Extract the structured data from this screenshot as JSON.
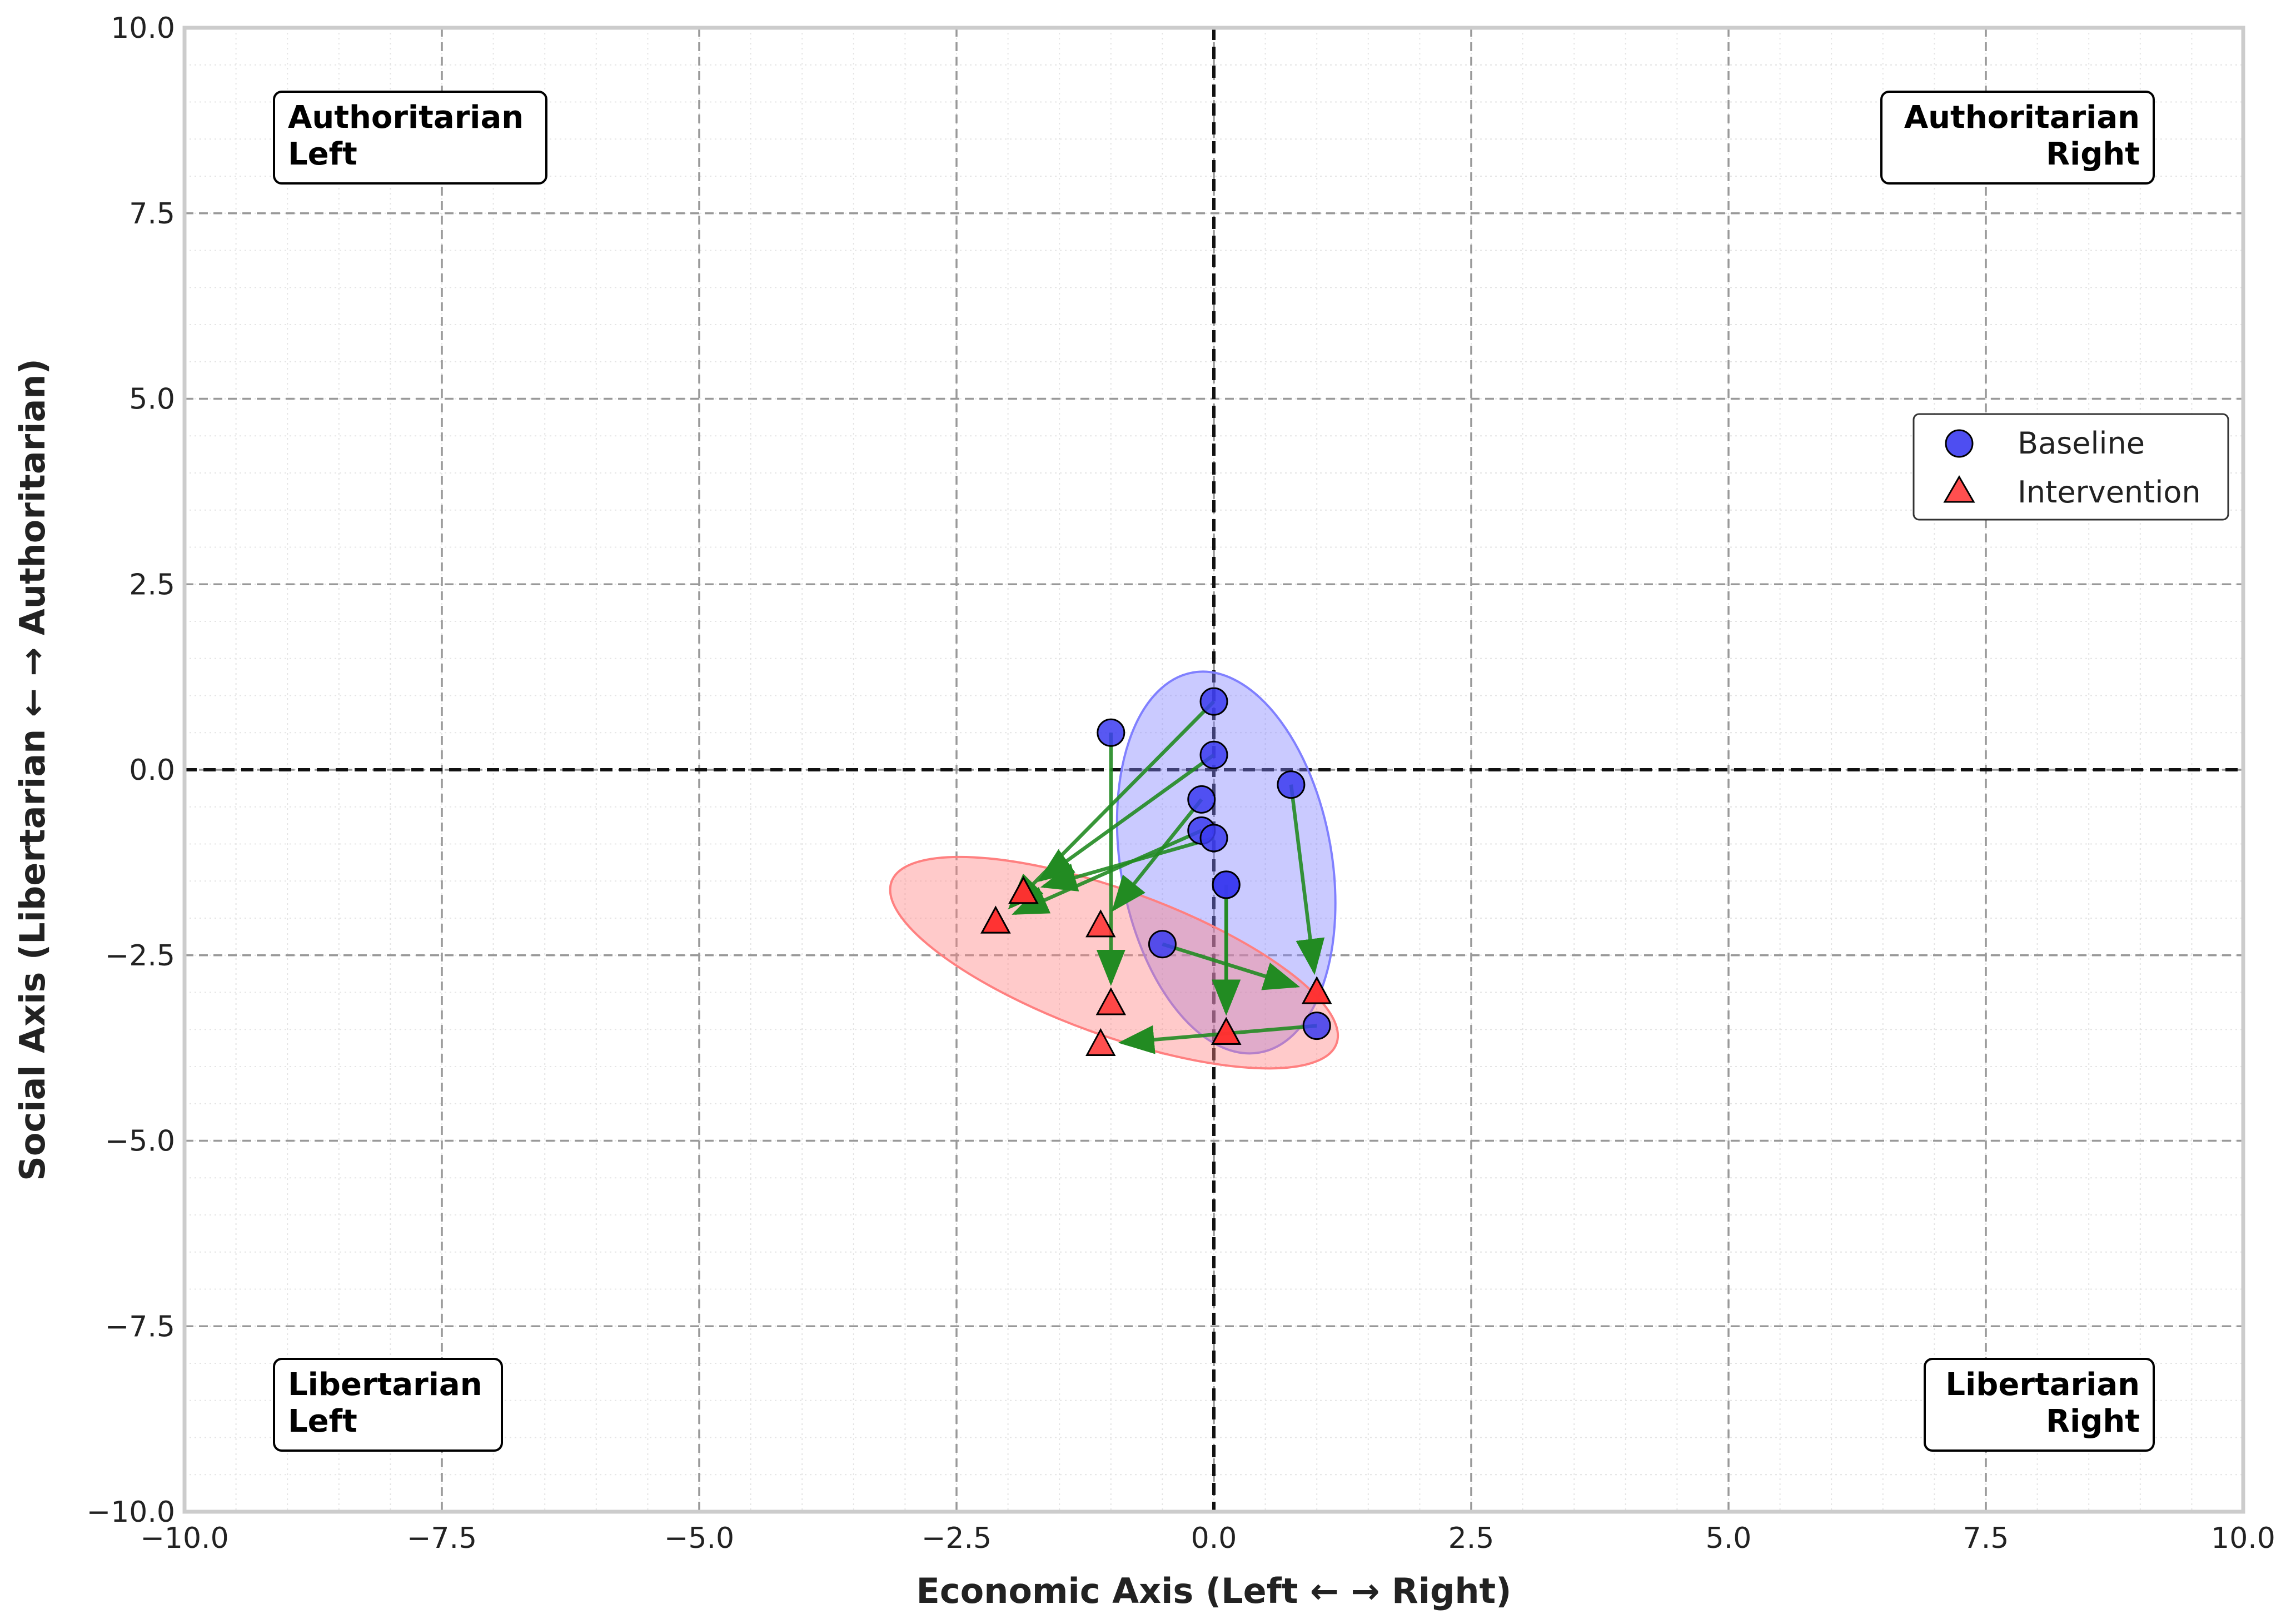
{
  "chart_data": {
    "type": "scatter",
    "title": "",
    "xlabel": "Economic Axis (Left ← → Right)",
    "ylabel": "Social Axis (Libertarian ← → Authoritarian)",
    "xlim": [
      -10,
      10
    ],
    "ylim": [
      -10,
      10
    ],
    "x_ticks": [
      -10,
      -7.5,
      -5,
      -2.5,
      0,
      2.5,
      5,
      7.5,
      10
    ],
    "y_ticks": [
      -10,
      -7.5,
      -5,
      -2.5,
      0,
      2.5,
      5,
      7.5,
      10
    ],
    "x_tick_labels": [
      "−10.0",
      "−7.5",
      "−5.0",
      "−2.5",
      "0.0",
      "2.5",
      "5.0",
      "7.5",
      "10.0"
    ],
    "y_tick_labels": [
      "−10.0",
      "−7.5",
      "−5.0",
      "−2.5",
      "0.0",
      "2.5",
      "5.0",
      "7.5",
      "10.0"
    ],
    "grid": true,
    "legend_position": "center-right",
    "colors": {
      "baseline": "#3b3bf0",
      "intervention": "#ff3030",
      "arrow": "#228b22",
      "baseline_ellipse": "#8080ff",
      "intervention_ellipse": "#ff8080"
    },
    "quadrant_labels": [
      {
        "lines": [
          "Authoritarian",
          "Left"
        ],
        "position": "top-left"
      },
      {
        "lines": [
          "Authoritarian",
          "Right"
        ],
        "position": "top-right"
      },
      {
        "lines": [
          "Libertarian",
          "Left"
        ],
        "position": "bottom-left"
      },
      {
        "lines": [
          "Libertarian",
          "Right"
        ],
        "position": "bottom-right"
      }
    ],
    "series": [
      {
        "name": "Baseline",
        "marker": "circle",
        "points": [
          [
            -1.0,
            0.5
          ],
          [
            0.0,
            0.92
          ],
          [
            0.0,
            0.2
          ],
          [
            0.75,
            -0.2
          ],
          [
            -0.12,
            -0.4
          ],
          [
            -0.12,
            -0.82
          ],
          [
            0.0,
            -0.92
          ],
          [
            0.12,
            -1.55
          ],
          [
            0.12,
            -1.55
          ],
          [
            -0.5,
            -2.35
          ],
          [
            1.0,
            -3.45
          ]
        ]
      },
      {
        "name": "Intervention",
        "marker": "triangle",
        "points": [
          [
            -1.0,
            -3.15
          ],
          [
            -2.12,
            -2.05
          ],
          [
            -1.85,
            -1.65
          ],
          [
            1.0,
            -3.0
          ],
          [
            -1.1,
            -2.1
          ],
          [
            -2.12,
            -2.05
          ],
          [
            -1.85,
            -1.65
          ],
          [
            0.12,
            -3.55
          ],
          [
            0.12,
            -3.55
          ],
          [
            1.0,
            -3.0
          ],
          [
            -1.1,
            -3.7
          ]
        ]
      }
    ],
    "shift_arrows": "Each baseline point connects to its intervention point",
    "confidence_ellipses": [
      {
        "series": "Baseline",
        "center": [
          0.12,
          -1.25
        ],
        "width": 2.05,
        "height": 5.2,
        "angle_deg": 10
      },
      {
        "series": "Intervention",
        "center": [
          -0.97,
          -2.6
        ],
        "width": 4.6,
        "height": 1.95,
        "angle_deg": -20
      }
    ]
  }
}
